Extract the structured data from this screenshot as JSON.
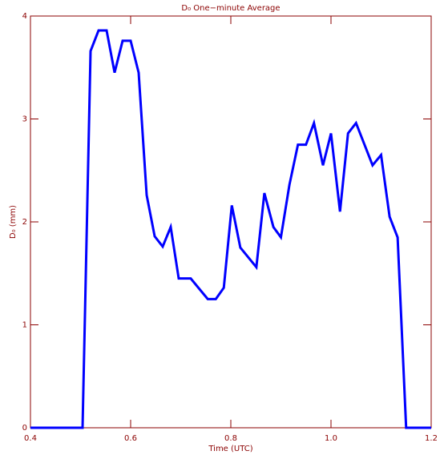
{
  "chart_data": {
    "type": "line",
    "title": "D₀ One−minute Average",
    "x_label": "Time (UTC)",
    "y_label": "D₀ (mm)",
    "x": [
      0.4,
      0.504,
      0.52,
      0.536,
      0.552,
      0.568,
      0.584,
      0.6,
      0.616,
      0.632,
      0.648,
      0.664,
      0.68,
      0.696,
      0.72,
      0.754,
      0.77,
      0.786,
      0.802,
      0.819,
      0.851,
      0.867,
      0.885,
      0.9,
      0.917,
      0.934,
      0.95,
      0.966,
      0.984,
      1.0,
      1.018,
      1.034,
      1.05,
      1.083,
      1.1,
      1.117,
      1.133,
      1.15,
      1.2
    ],
    "series": [
      {
        "color": "#0000ff",
        "values": [
          0,
          0,
          3.66,
          3.86,
          3.86,
          3.45,
          3.76,
          3.76,
          3.45,
          2.26,
          1.86,
          1.76,
          1.95,
          1.45,
          1.45,
          1.25,
          1.25,
          1.36,
          2.16,
          1.75,
          1.56,
          2.28,
          1.95,
          1.85,
          2.36,
          2.75,
          2.75,
          2.96,
          2.55,
          2.86,
          2.1,
          2.86,
          2.96,
          2.55,
          2.65,
          2.05,
          1.85,
          0,
          0
        ]
      }
    ],
    "xlim": [
      0.4,
      1.2
    ],
    "ylim": [
      0,
      4
    ],
    "xticks": [
      0.4,
      0.6,
      0.8,
      {
        "value": 1,
        "label": "1.0"
      },
      1.2
    ],
    "yticks": [
      0,
      1,
      2,
      3,
      4
    ],
    "axis_color": "#8b0000"
  }
}
